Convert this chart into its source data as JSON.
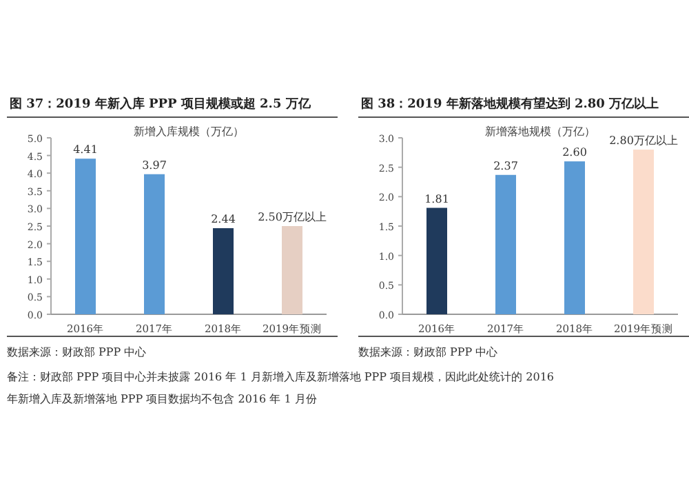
{
  "chart_data": [
    {
      "type": "bar",
      "title": "图 37：2019 年新入库 PPP 项目规模或超 2.5 万亿",
      "subtitle": "新增入库规模（万亿）",
      "categories": [
        "2016年",
        "2017年",
        "2018年",
        "2019年预测"
      ],
      "series": [
        {
          "colors": [
            "#5b9bd5",
            "#5b9bd5",
            "#1f3a5c",
            "#e6cfc3"
          ],
          "values": [
            4.41,
            3.97,
            2.44,
            2.5
          ],
          "value_labels": [
            "4.41",
            "3.97",
            "2.44",
            "2.50万亿以上"
          ]
        }
      ],
      "ylim": [
        0,
        5
      ],
      "yticks": [
        {
          "value": 0,
          "label": "0.0"
        },
        {
          "value": 0.5,
          "label": "0.5"
        },
        {
          "value": 1,
          "label": "1.0"
        },
        {
          "value": 1.5,
          "label": "1.5"
        },
        {
          "value": 2,
          "label": "2.0"
        },
        {
          "value": 2.5,
          "label": "2.5"
        },
        {
          "value": 3,
          "label": "3.0"
        },
        {
          "value": 3.5,
          "label": "3.5"
        },
        {
          "value": 4,
          "label": "4.0"
        },
        {
          "value": 4.5,
          "label": "4.5"
        },
        {
          "value": 5,
          "label": "5.0"
        }
      ],
      "annotations": [
        "数据来源：财政部 PPP 中心",
        "备注：财政部 PPP 项目中心并未披露 2016 年 1 月新增入库及新增落地 PPP 项目规模，因此此处统计的 2016 年新增入库及新增落地 PPP 项目数据均不包含 2016 年 1 月份"
      ]
    },
    {
      "type": "bar",
      "title": "图 38：2019 年新落地规模有望达到 2.80 万亿以上",
      "subtitle": "新增落地规模（万亿）",
      "categories": [
        "2016年",
        "2017年",
        "2018年",
        "2019年预测"
      ],
      "series": [
        {
          "colors": [
            "#1f3a5c",
            "#5b9bd5",
            "#5b9bd5",
            "#fbdccb"
          ],
          "values": [
            1.81,
            2.37,
            2.6,
            2.8
          ],
          "value_labels": [
            "1.81",
            "2.37",
            "2.60",
            "2.80万亿以上"
          ]
        }
      ],
      "ylim": [
        0,
        3
      ],
      "yticks": [
        {
          "value": 0,
          "label": "0.0"
        },
        {
          "value": 0.5,
          "label": "0.5"
        },
        {
          "value": 1,
          "label": "1.0"
        },
        {
          "value": 1.5,
          "label": "1.5"
        },
        {
          "value": 2,
          "label": "2.0"
        },
        {
          "value": 2.5,
          "label": "2.5"
        },
        {
          "value": 3,
          "label": "3.0"
        }
      ],
      "annotations": [
        "数据来源：财政部 PPP 中心"
      ]
    }
  ]
}
